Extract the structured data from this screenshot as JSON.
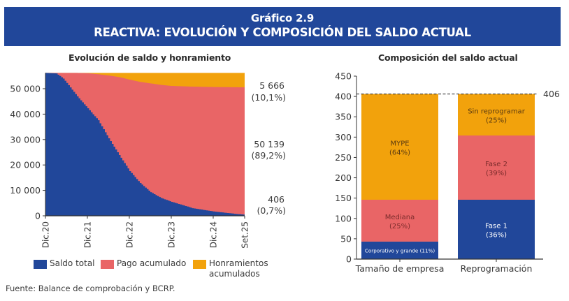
{
  "header": {
    "number": "Gráfico 2.9",
    "title": "REACTIVA: EVOLUCIÓN Y COMPOSICIÓN DEL SALDO ACTUAL"
  },
  "colors": {
    "header_bg": "#21479a",
    "saldo": "#21479a",
    "pago": "#e96566",
    "honramientos": "#f2a20c"
  },
  "legend": [
    {
      "label": "Saldo total",
      "color": "#21479a"
    },
    {
      "label": "Pago acumulado",
      "color": "#e96566"
    },
    {
      "label": "Honramientos acumulados",
      "line1": "Honramientos",
      "line2": "acumulados",
      "color": "#f2a20c"
    }
  ],
  "source": "Fuente: Balance de comprobación y BCRP.",
  "chart_data": [
    {
      "type": "area",
      "stacked": true,
      "title": "Evolución de saldo y honramiento",
      "xlabel": "",
      "ylabel": "",
      "ylim": [
        0,
        56211
      ],
      "yticks": [
        0,
        10000,
        20000,
        30000,
        40000,
        50000
      ],
      "ytick_labels": [
        "0",
        "10 000",
        "20 000",
        "30 000",
        "40 000",
        "50 000"
      ],
      "x_months_from_dic20": [
        0,
        3,
        5,
        7,
        9,
        12,
        15,
        18,
        21,
        24,
        27,
        30,
        33,
        36,
        42,
        48,
        54,
        57
      ],
      "xticks": [
        0,
        12,
        24,
        36,
        48,
        57
      ],
      "xtick_labels": [
        "Dic.20",
        "Dic.21",
        "Dic.22",
        "Dic.23",
        "Dic.24",
        "Set.25"
      ],
      "total": 56211,
      "series": [
        {
          "name": "Saldo total",
          "values": [
            56211,
            56000,
            54000,
            50500,
            47000,
            42300,
            37600,
            30500,
            23900,
            17600,
            12900,
            9300,
            7000,
            5500,
            3000,
            1700,
            800,
            406
          ]
        },
        {
          "name": "Honramientos acumulados",
          "values": [
            0,
            0,
            0,
            0,
            0,
            100,
            500,
            1000,
            1600,
            2600,
            3500,
            4100,
            4700,
            5100,
            5400,
            5550,
            5630,
            5666
          ]
        },
        {
          "name": "Pago acumulado",
          "values_note": "remainder = total - saldo - honramientos"
        }
      ],
      "end_labels": [
        {
          "value": "5 666",
          "pct": "(10,1%)",
          "series": "Honramientos acumulados"
        },
        {
          "value": "50 139",
          "pct": "(89,2%)",
          "series": "Pago acumulado"
        },
        {
          "value": "406",
          "pct": "(0,7%)",
          "series": "Saldo total"
        }
      ],
      "legend": "bottom"
    },
    {
      "type": "bar",
      "stacked": true,
      "title": "Composición del saldo actual",
      "categories": [
        "Tamaño de empresa",
        "Reprogramación"
      ],
      "ylim": [
        0,
        450
      ],
      "yticks": [
        0,
        50,
        100,
        150,
        200,
        250,
        300,
        350,
        400,
        450
      ],
      "reference_line": {
        "value": 406,
        "label": "406",
        "style": "dashed"
      },
      "bars": [
        {
          "category": "Tamaño de empresa",
          "segments": [
            {
              "name": "Corporativo y grande",
              "label": "Corporativo y grande (11%)",
              "pct": 11,
              "value": 43,
              "color": "#21479a",
              "text_color": "#ffffff"
            },
            {
              "name": "Mediana",
              "label1": "Mediana",
              "label2": "(25%)",
              "pct": 25,
              "value": 103,
              "color": "#e96566",
              "text_color": "#7a2b2b"
            },
            {
              "name": "MYPE",
              "label1": "MYPE",
              "label2": "(64%)",
              "pct": 64,
              "value": 260,
              "color": "#f2a20c",
              "text_color": "#5a3a10"
            }
          ]
        },
        {
          "category": "Reprogramación",
          "segments": [
            {
              "name": "Fase 1",
              "label1": "Fase 1",
              "label2": "(36%)",
              "pct": 36,
              "value": 146,
              "color": "#21479a",
              "text_color": "#ffffff"
            },
            {
              "name": "Fase 2",
              "label1": "Fase 2",
              "label2": "(39%)",
              "pct": 39,
              "value": 158,
              "color": "#e96566",
              "text_color": "#7a2b2b"
            },
            {
              "name": "Sin reprogramar",
              "label1": "Sin reprogramar",
              "label2": "(25%)",
              "pct": 25,
              "value": 102,
              "color": "#f2a20c",
              "text_color": "#5a3a10"
            }
          ]
        }
      ]
    }
  ]
}
